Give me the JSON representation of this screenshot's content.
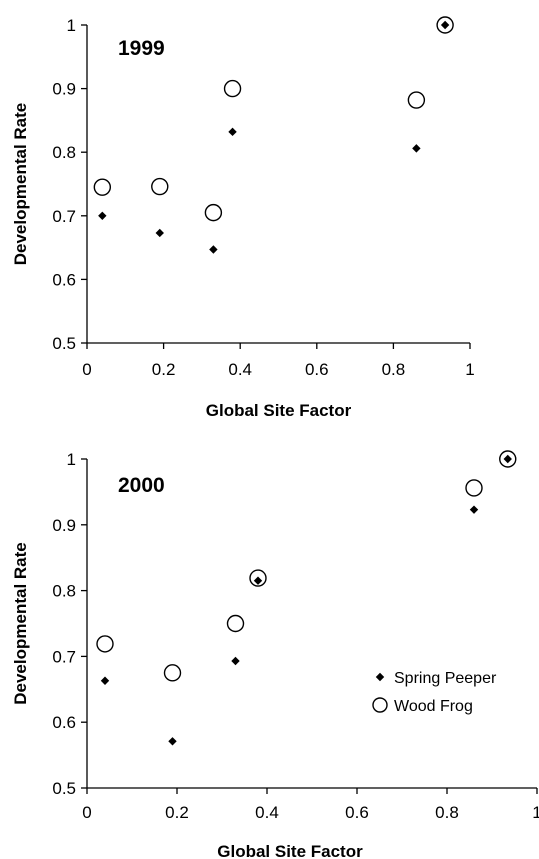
{
  "chart_data": [
    {
      "type": "scatter",
      "title": "1999",
      "xlabel": "Global Site Factor",
      "ylabel": "Developmental Rate",
      "xlim": [
        0,
        1
      ],
      "ylim": [
        0.5,
        1
      ],
      "xticks": [
        "0",
        "0.2",
        "0.4",
        "0.6",
        "0.8",
        "1"
      ],
      "yticks": [
        "0.5",
        "0.6",
        "0.7",
        "0.8",
        "0.9",
        "1"
      ],
      "grid": false,
      "series": [
        {
          "name": "Spring Peeper",
          "marker": "filled-diamond",
          "color": "#000000",
          "x": [
            0.04,
            0.19,
            0.33,
            0.38,
            0.86,
            0.935
          ],
          "y": [
            0.7,
            0.673,
            0.647,
            0.832,
            0.806,
            1.0
          ]
        },
        {
          "name": "Wood Frog",
          "marker": "open-circle",
          "color": "#000000",
          "x": [
            0.04,
            0.19,
            0.33,
            0.38,
            0.86,
            0.935
          ],
          "y": [
            0.745,
            0.746,
            0.705,
            0.9,
            0.882,
            1.0
          ]
        }
      ]
    },
    {
      "type": "scatter",
      "title": "2000",
      "xlabel": "Global Site Factor",
      "ylabel": "Developmental Rate",
      "xlim": [
        0,
        1
      ],
      "ylim": [
        0.5,
        1
      ],
      "xticks": [
        "0",
        "0.2",
        "0.4",
        "0.6",
        "0.8",
        "1"
      ],
      "yticks": [
        "0.5",
        "0.6",
        "0.7",
        "0.8",
        "0.9",
        "1"
      ],
      "grid": false,
      "legend_position": "bottom-right",
      "series": [
        {
          "name": "Spring Peeper",
          "marker": "filled-diamond",
          "color": "#000000",
          "x": [
            0.04,
            0.19,
            0.33,
            0.38,
            0.86,
            0.935
          ],
          "y": [
            0.663,
            0.571,
            0.693,
            0.815,
            0.923,
            1.0
          ]
        },
        {
          "name": "Wood Frog",
          "marker": "open-circle",
          "color": "#000000",
          "x": [
            0.04,
            0.19,
            0.33,
            0.38,
            0.86,
            0.935
          ],
          "y": [
            0.719,
            0.675,
            0.75,
            0.819,
            0.956,
            1.0
          ]
        }
      ]
    }
  ]
}
